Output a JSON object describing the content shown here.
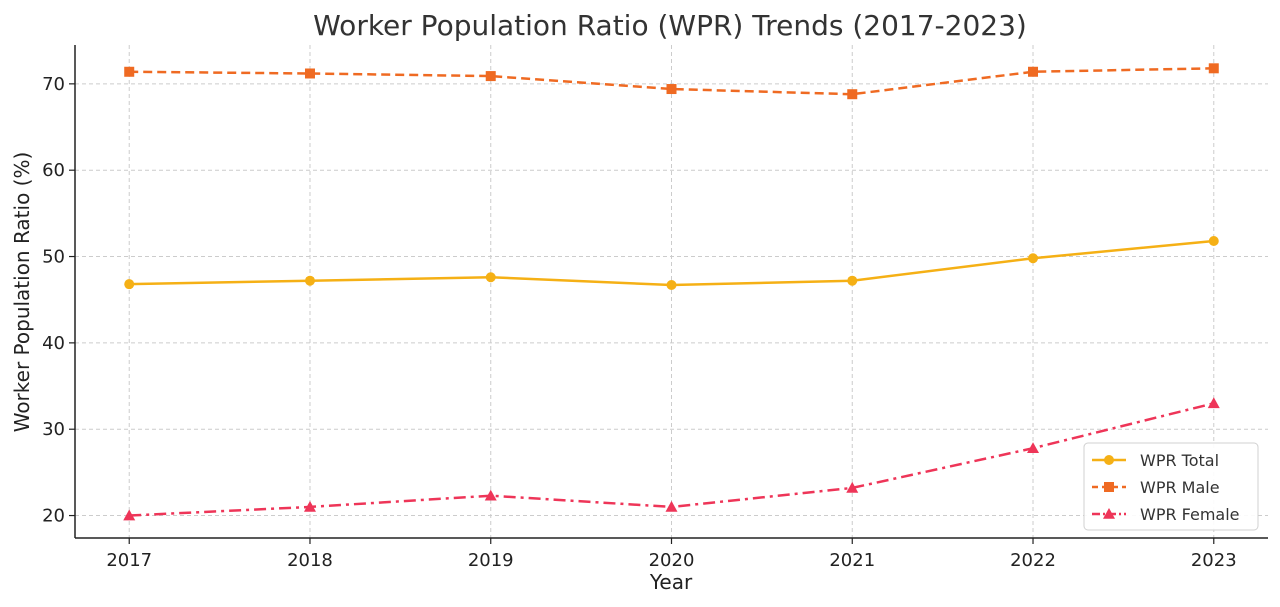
{
  "chart_data": {
    "type": "line",
    "title": "Worker Population Ratio (WPR) Trends (2017-2023)",
    "xlabel": "Year",
    "ylabel": "Worker Population Ratio (%)",
    "x": [
      2017,
      2018,
      2019,
      2020,
      2021,
      2022,
      2023
    ],
    "x_tick_labels": [
      "2017",
      "2018",
      "2019",
      "2020",
      "2021",
      "2022",
      "2023"
    ],
    "y_ticks": [
      20,
      30,
      40,
      50,
      60,
      70
    ],
    "y_tick_labels": [
      "20",
      "30",
      "40",
      "50",
      "60",
      "70"
    ],
    "ylim": [
      17.4,
      74.5
    ],
    "xlim": [
      2016.7,
      2023.3
    ],
    "grid": true,
    "legend_position": "lower-right",
    "series": [
      {
        "name": "WPR Total",
        "values": [
          46.8,
          47.2,
          47.6,
          46.7,
          47.2,
          49.8,
          51.8
        ],
        "color": "#f5b015",
        "line_style": "solid",
        "marker": "circle"
      },
      {
        "name": "WPR Male",
        "values": [
          71.4,
          71.2,
          70.9,
          69.4,
          68.8,
          71.4,
          71.8
        ],
        "color": "#ef6a22",
        "line_style": "dashed",
        "marker": "square"
      },
      {
        "name": "WPR Female",
        "values": [
          20.0,
          21.0,
          22.3,
          21.0,
          23.2,
          27.8,
          33.0
        ],
        "color": "#ee3558",
        "line_style": "dashdot",
        "marker": "triangle"
      }
    ]
  }
}
